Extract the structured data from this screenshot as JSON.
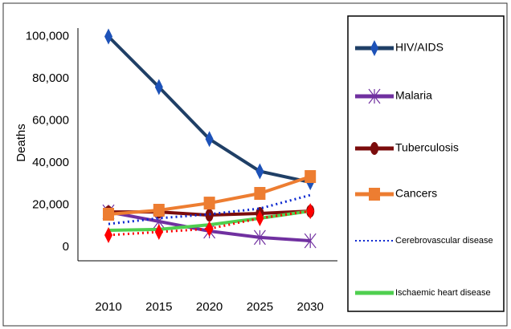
{
  "chart_data": {
    "type": "line",
    "y_label": "Deaths",
    "categories": [
      "2010",
      "2015",
      "2020",
      "2025",
      "2030"
    ],
    "ylim": [
      -6500,
      104000
    ],
    "yticks": [
      0,
      {
        "value": 20000,
        "label": "20,000"
      },
      {
        "value": 40000,
        "label": "40,000"
      },
      {
        "value": 60000,
        "label": "60,000"
      },
      {
        "value": 80000,
        "label": "80,000"
      },
      {
        "value": 100000,
        "label": "100,000"
      }
    ],
    "series": [
      {
        "name": "HIV/AIDS",
        "color": "#1f3f66",
        "marker_color": "#1d52b8",
        "marker": "diamond",
        "dashed": false,
        "values": [
          100000,
          76000,
          51300,
          36000,
          30800
        ]
      },
      {
        "name": "Malaria",
        "color": "#7030a0",
        "marker_color": "#7030a0",
        "marker": "x",
        "dashed": false,
        "values": [
          16700,
          12200,
          7600,
          4600,
          3000
        ]
      },
      {
        "name": "Tuberculosis",
        "color": "#7b0c0c",
        "marker_color": "#7b0c0c",
        "marker": "circle",
        "dashed": false,
        "values": [
          16700,
          16700,
          15200,
          16000,
          17100
        ]
      },
      {
        "name": "Cancers",
        "color": "#ed7d31",
        "marker_color": "#ed7d31",
        "marker": "square",
        "dashed": false,
        "values": [
          15600,
          17500,
          20900,
          25500,
          33500
        ]
      },
      {
        "name": "Cerebrovascular disease",
        "color": "#0a28d0",
        "marker_color": "#0a28d0",
        "marker": "none",
        "dashed": true,
        "values": [
          11000,
          13700,
          15600,
          18300,
          24700
        ]
      },
      {
        "name": "Ischaemic heart disease",
        "color": "#4fcf4f",
        "marker_color": "#4fcf4f",
        "marker": "none",
        "dashed": false,
        "values": [
          8000,
          8400,
          10600,
          13700,
          17100
        ]
      },
      {
        "name": null,
        "color": "#ff0000",
        "marker_color": "#ff0000",
        "marker": "diamond",
        "dashed": true,
        "values": [
          5700,
          7200,
          8700,
          13700,
          17100
        ]
      }
    ]
  }
}
